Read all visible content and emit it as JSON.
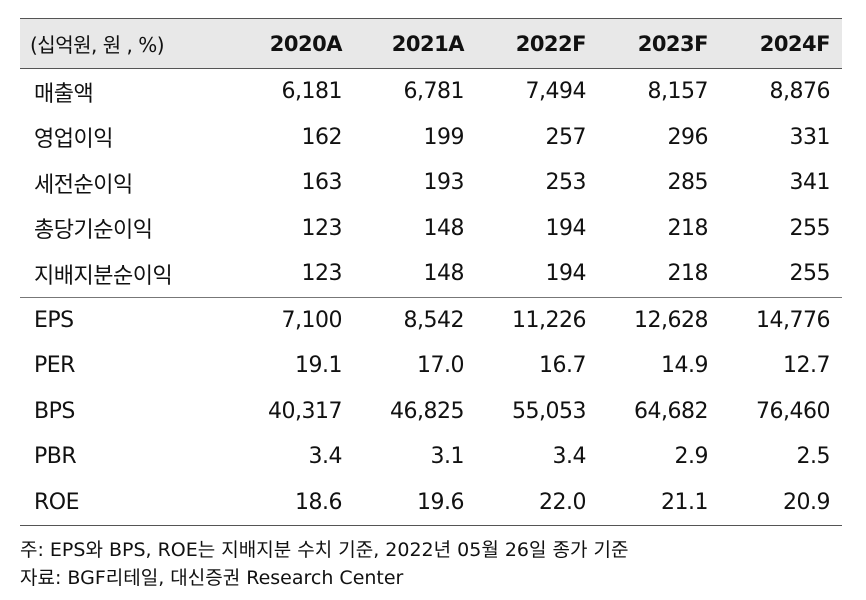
{
  "header": {
    "unit": "(십억원, 원 , %)",
    "years": [
      "2020A",
      "2021A",
      "2022F",
      "2023F",
      "2024F"
    ]
  },
  "rows": [
    {
      "label": "매출액",
      "values": [
        "6,181",
        "6,781",
        "7,494",
        "8,157",
        "8,876"
      ]
    },
    {
      "label": "영업이익",
      "values": [
        "162",
        "199",
        "257",
        "296",
        "331"
      ]
    },
    {
      "label": "세전순이익",
      "values": [
        "163",
        "193",
        "253",
        "285",
        "341"
      ]
    },
    {
      "label": "총당기순이익",
      "values": [
        "123",
        "148",
        "194",
        "218",
        "255"
      ]
    },
    {
      "label": "지배지분순이익",
      "values": [
        "123",
        "148",
        "194",
        "218",
        "255"
      ]
    },
    {
      "label": "EPS",
      "values": [
        "7,100",
        "8,542",
        "11,226",
        "12,628",
        "14,776"
      ]
    },
    {
      "label": "PER",
      "values": [
        "19.1",
        "17.0",
        "16.7",
        "14.9",
        "12.7"
      ]
    },
    {
      "label": "BPS",
      "values": [
        "40,317",
        "46,825",
        "55,053",
        "64,682",
        "76,460"
      ]
    },
    {
      "label": "PBR",
      "values": [
        "3.4",
        "3.1",
        "3.4",
        "2.9",
        "2.5"
      ]
    },
    {
      "label": "ROE",
      "values": [
        "18.6",
        "19.6",
        "22.0",
        "21.1",
        "20.9"
      ]
    }
  ],
  "notes": {
    "note": "주: EPS와 BPS, ROE는 지배지분 수치 기준, 2022년 05월 26일 종가 기준",
    "source": "자료: BGF리테일, 대신증권 Research Center"
  }
}
